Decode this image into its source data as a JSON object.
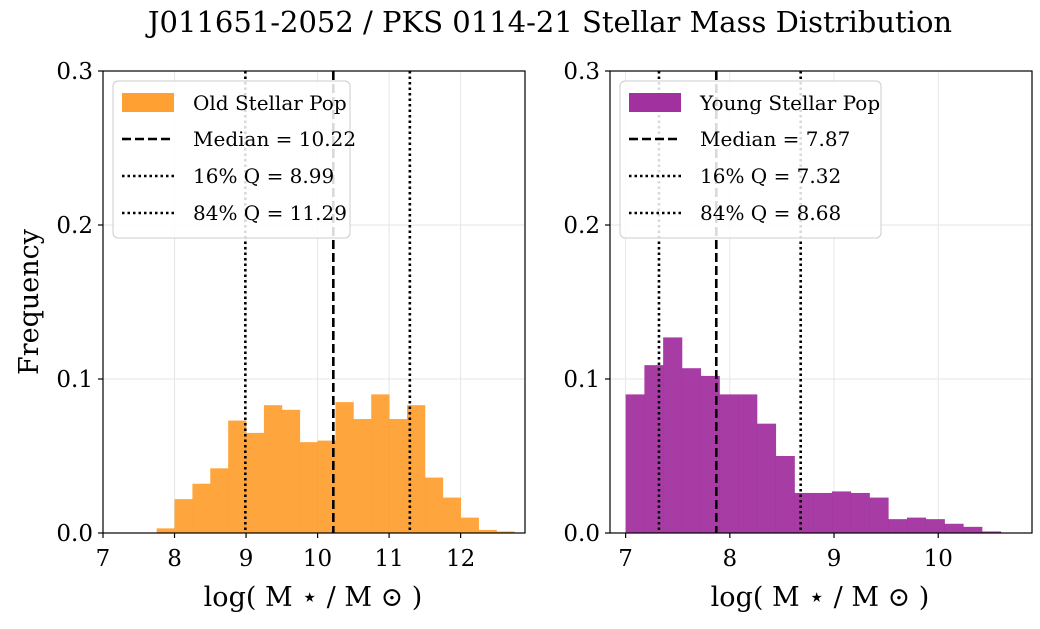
{
  "title": "J011651-2052 / PKS 0114-21 Stellar Mass Distribution",
  "ylabel": "Frequency",
  "xlabel": "log( M ⋆ / M ⊙ )",
  "chart_data": [
    {
      "type": "bar",
      "xlim": [
        7.0,
        12.9
      ],
      "ylim": [
        0,
        0.3
      ],
      "xticks": [
        7,
        8,
        9,
        10,
        11,
        12
      ],
      "yticks": [
        0.0,
        0.1,
        0.2,
        0.3
      ],
      "yticklabels": [
        "0.0",
        "0.1",
        "0.2",
        "0.3"
      ],
      "grid": true,
      "legend_position": "top-left",
      "color": "#ffa033",
      "series_name": "Old Stellar Pop",
      "bins_start": 7.75,
      "bin_width": 0.25,
      "values": [
        0.003,
        0.022,
        0.032,
        0.042,
        0.073,
        0.065,
        0.083,
        0.08,
        0.059,
        0.06,
        0.085,
        0.074,
        0.09,
        0.074,
        0.083,
        0.036,
        0.023,
        0.01,
        0.002,
        0.001
      ],
      "lines": [
        {
          "label": "Median = 10.22",
          "x": 10.22,
          "style": "dashed"
        },
        {
          "label": "16% Q = 8.99",
          "x": 8.99,
          "style": "dotted"
        },
        {
          "label": "84% Q = 11.29",
          "x": 11.29,
          "style": "dotted"
        }
      ]
    },
    {
      "type": "bar",
      "xlim": [
        6.85,
        10.9
      ],
      "ylim": [
        0,
        0.3
      ],
      "xticks": [
        7,
        8,
        9,
        10
      ],
      "yticks": [
        0.0,
        0.1,
        0.2,
        0.3
      ],
      "yticklabels": [
        "0.0",
        "0.1",
        "0.2",
        "0.3"
      ],
      "grid": true,
      "legend_position": "top-left",
      "color": "#a231a0",
      "series_name": "Young Stellar Pop",
      "bins_start": 7.0,
      "bin_width": 0.18,
      "values": [
        0.09,
        0.109,
        0.127,
        0.107,
        0.102,
        0.09,
        0.09,
        0.071,
        0.05,
        0.026,
        0.026,
        0.027,
        0.026,
        0.023,
        0.009,
        0.01,
        0.009,
        0.006,
        0.004,
        0.001
      ],
      "lines": [
        {
          "label": "Median = 7.87",
          "x": 7.87,
          "style": "dashed"
        },
        {
          "label": "16% Q = 7.32",
          "x": 7.32,
          "style": "dotted"
        },
        {
          "label": "84% Q = 8.68",
          "x": 8.68,
          "style": "dotted"
        }
      ]
    }
  ]
}
